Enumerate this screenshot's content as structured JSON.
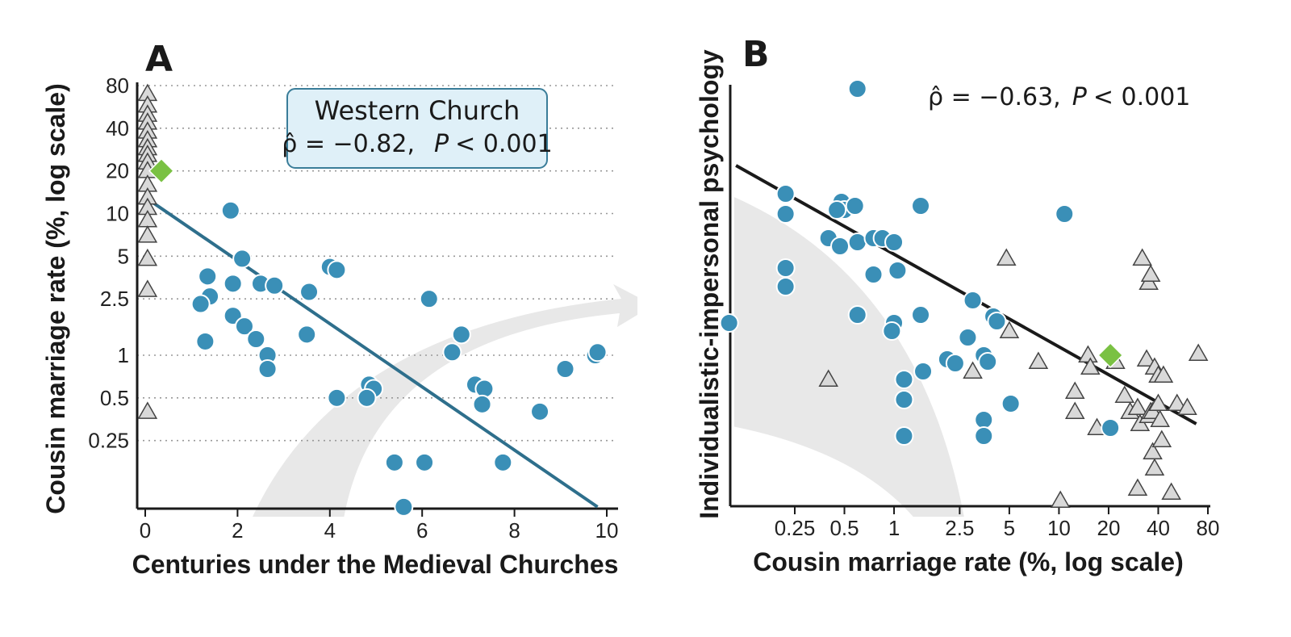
{
  "colors": {
    "church_points": "#3a8fb7",
    "comparison_points": "#d9d9d9",
    "reference_point": "#7ac143",
    "regression_a": "#2e6f8c",
    "regression_b": "#1a1a1a",
    "arrow": "#e6e6e6",
    "annotation_box": "#dff0f8",
    "annotation_border": "#3a7d99",
    "gridline": "#999999"
  },
  "chart_data": [
    {
      "panel": "A",
      "type": "scatter",
      "xlabel": "Centuries under the Medieval Churches",
      "ylabel": "Cousin marriage rate (%, log scale)",
      "xlim": [
        0,
        10
      ],
      "ylim": [
        0.075,
        80
      ],
      "y_scale": "log",
      "grid": "horizontal dotted at y tick values",
      "x_ticks": [
        0,
        2,
        4,
        6,
        8,
        10
      ],
      "x_tick_labels": [
        "0",
        "2",
        "4",
        "6",
        "8",
        "10"
      ],
      "y_ticks": [
        80,
        40,
        20,
        10,
        5,
        2.5,
        1,
        0.5,
        0.25
      ],
      "y_tick_labels": [
        "80",
        "40",
        "20",
        "10",
        "5",
        "2.5",
        "1",
        "0.5",
        "0.25"
      ],
      "annotation": {
        "title": "Western Church",
        "rho": "ρ̂ = −0.82,",
        "p_label": "P",
        "p_value": "< 0.001"
      },
      "regression": {
        "x": [
          0,
          9.8
        ],
        "y": [
          13,
          0.085
        ]
      },
      "series": [
        {
          "marker": "circle",
          "points": [
            [
              1.85,
              10.5
            ],
            [
              2.1,
              4.8
            ],
            [
              1.35,
              3.6
            ],
            [
              1.9,
              3.2
            ],
            [
              1.4,
              2.6
            ],
            [
              1.2,
              2.3
            ],
            [
              1.9,
              1.9
            ],
            [
              2.15,
              1.6
            ],
            [
              2.4,
              1.3
            ],
            [
              1.3,
              1.25
            ],
            [
              2.65,
              1.0
            ],
            [
              2.65,
              0.8
            ],
            [
              2.5,
              3.2
            ],
            [
              2.8,
              3.1
            ],
            [
              3.55,
              2.8
            ],
            [
              3.5,
              1.4
            ],
            [
              4.0,
              4.2
            ],
            [
              4.15,
              4.0
            ],
            [
              4.15,
              0.5
            ],
            [
              4.85,
              0.62
            ],
            [
              4.95,
              0.58
            ],
            [
              4.8,
              0.5
            ],
            [
              6.15,
              2.5
            ],
            [
              6.85,
              1.4
            ],
            [
              6.65,
              1.05
            ],
            [
              7.15,
              0.62
            ],
            [
              7.35,
              0.58
            ],
            [
              7.3,
              0.45
            ],
            [
              5.4,
              0.175
            ],
            [
              6.05,
              0.175
            ],
            [
              5.6,
              0.085
            ],
            [
              7.75,
              0.175
            ],
            [
              8.55,
              0.4
            ],
            [
              9.1,
              0.8
            ],
            [
              9.75,
              1.0
            ],
            [
              9.8,
              1.05
            ]
          ]
        },
        {
          "marker": "triangle",
          "points": [
            [
              0.05,
              70
            ],
            [
              0.05,
              58
            ],
            [
              0.05,
              50
            ],
            [
              0.05,
              44
            ],
            [
              0.05,
              38
            ],
            [
              0.05,
              33
            ],
            [
              0.05,
              29
            ],
            [
              0.05,
              26
            ],
            [
              0.05,
              23
            ],
            [
              0.05,
              20
            ],
            [
              0.05,
              16
            ],
            [
              0.05,
              13
            ],
            [
              0.05,
              11
            ],
            [
              0.05,
              9
            ],
            [
              0.05,
              7
            ],
            [
              0.05,
              4.8
            ],
            [
              0.05,
              2.9
            ],
            [
              0.05,
              0.4
            ]
          ]
        },
        {
          "marker": "diamond",
          "points": [
            [
              0.35,
              20
            ]
          ]
        }
      ]
    },
    {
      "panel": "B",
      "type": "scatter",
      "xlabel": "Cousin marriage rate (%, log scale)",
      "ylabel": "Individualistic-impersonal psychology",
      "x_scale": "log",
      "xlim": [
        0.1,
        80
      ],
      "x_ticks": [
        0.25,
        0.5,
        1,
        2.5,
        5,
        10,
        20,
        40,
        80
      ],
      "x_tick_labels": [
        "0.25",
        "0.5",
        "1",
        "2.5",
        "5",
        "10",
        "20",
        "40",
        "80"
      ],
      "annotation": {
        "rho": "ρ̂ = −0.63,",
        "p_label": "P",
        "p_value": "< 0.001"
      },
      "regression": {
        "x": [
          0.11,
          68
        ],
        "y": [
          2.05,
          -1.15
        ]
      },
      "series": [
        {
          "marker": "circle",
          "points": [
            [
              0.6,
              3.0
            ],
            [
              0.22,
              1.7
            ],
            [
              0.22,
              1.45
            ],
            [
              0.48,
              1.6
            ],
            [
              0.5,
              1.5
            ],
            [
              0.58,
              1.55
            ],
            [
              0.45,
              1.5
            ],
            [
              1.45,
              1.55
            ],
            [
              10.8,
              1.45
            ],
            [
              0.4,
              1.15
            ],
            [
              0.47,
              1.05
            ],
            [
              0.6,
              1.1
            ],
            [
              0.75,
              1.15
            ],
            [
              0.85,
              1.15
            ],
            [
              1.0,
              1.1
            ],
            [
              0.22,
              0.78
            ],
            [
              0.22,
              0.55
            ],
            [
              0.75,
              0.7
            ],
            [
              1.05,
              0.75
            ],
            [
              0.6,
              0.2
            ],
            [
              1.45,
              0.2
            ],
            [
              0.1,
              0.1
            ],
            [
              1.0,
              0.1
            ],
            [
              0.97,
              0.0
            ],
            [
              3.0,
              0.38
            ],
            [
              4.0,
              0.18
            ],
            [
              4.2,
              0.12
            ],
            [
              2.8,
              -0.08
            ],
            [
              3.5,
              -0.3
            ],
            [
              3.7,
              -0.38
            ],
            [
              2.1,
              -0.35
            ],
            [
              2.35,
              -0.4
            ],
            [
              1.5,
              -0.5
            ],
            [
              1.15,
              -0.6
            ],
            [
              1.15,
              -0.85
            ],
            [
              5.1,
              -0.9
            ],
            [
              3.5,
              -1.1
            ],
            [
              3.5,
              -1.3
            ],
            [
              1.15,
              -1.3
            ],
            [
              20.5,
              -1.2
            ]
          ]
        },
        {
          "marker": "triangle",
          "points": [
            [
              0.4,
              -0.6
            ],
            [
              3.0,
              -0.5
            ],
            [
              4.8,
              0.9
            ],
            [
              5.0,
              0.0
            ],
            [
              7.5,
              -0.38
            ],
            [
              10.2,
              -2.1
            ],
            [
              12.5,
              -0.75
            ],
            [
              12.5,
              -1.0
            ],
            [
              15,
              -0.3
            ],
            [
              15.5,
              -0.45
            ],
            [
              17,
              -1.2
            ],
            [
              22,
              -0.38
            ],
            [
              25,
              -0.8
            ],
            [
              27,
              -1.0
            ],
            [
              30,
              -0.95
            ],
            [
              31,
              -1.15
            ],
            [
              32,
              0.9
            ],
            [
              34,
              -0.35
            ],
            [
              35,
              0.6
            ],
            [
              36,
              0.7
            ],
            [
              35,
              -1.05
            ],
            [
              36,
              -1.0
            ],
            [
              37,
              -1.0
            ],
            [
              37,
              -1.5
            ],
            [
              38,
              -1.7
            ],
            [
              38,
              -0.45
            ],
            [
              40,
              -0.55
            ],
            [
              40,
              -0.9
            ],
            [
              41,
              -1.1
            ],
            [
              42,
              -1.35
            ],
            [
              43,
              -0.55
            ],
            [
              48,
              -2.0
            ],
            [
              52,
              -0.9
            ],
            [
              60,
              -0.95
            ],
            [
              70,
              -0.28
            ],
            [
              30,
              -1.95
            ]
          ]
        },
        {
          "marker": "diamond",
          "points": [
            [
              20.5,
              -0.3
            ]
          ]
        }
      ]
    }
  ]
}
